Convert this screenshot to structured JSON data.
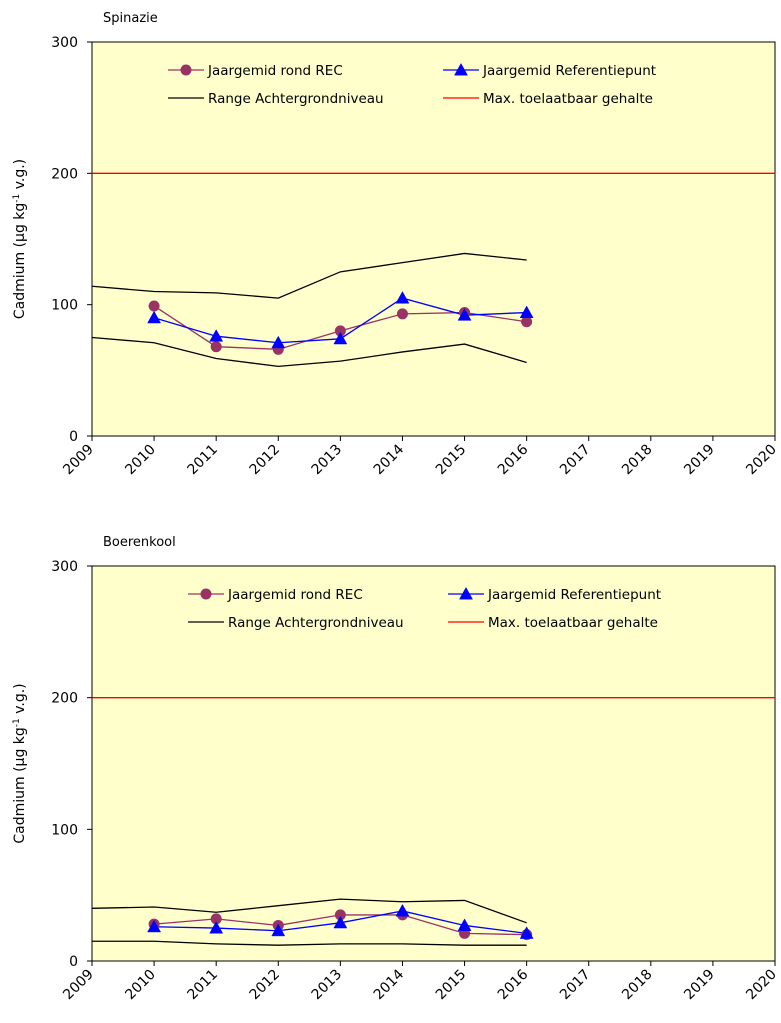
{
  "chart_data": [
    {
      "type": "line",
      "title": "Spinazie",
      "ylabel": "Cadmium  (µg kg",
      "ylabel_sup": "-1",
      "ylabel_tail": " v.g.)",
      "xlim": [
        2009,
        2020
      ],
      "ylim": [
        0,
        300
      ],
      "xticks": [
        2009,
        2010,
        2011,
        2012,
        2013,
        2014,
        2015,
        2016,
        2017,
        2018,
        2019,
        2020
      ],
      "yticks": [
        0,
        100,
        200,
        300
      ],
      "plot_background": "#FFFFCC",
      "legend": "top-center",
      "series": [
        {
          "name": "Jaargemid rond REC",
          "color": "#993366",
          "marker": "circle",
          "x": [
            2010,
            2011,
            2012,
            2013,
            2014,
            2015,
            2016
          ],
          "y": [
            99,
            68,
            66,
            80,
            93,
            94,
            87
          ]
        },
        {
          "name": "Jaargemid Referentiepunt",
          "color": "#0000FF",
          "marker": "triangle",
          "x": [
            2010,
            2011,
            2012,
            2013,
            2014,
            2015,
            2016
          ],
          "y": [
            90,
            76,
            71,
            74,
            105,
            92,
            94
          ]
        },
        {
          "name": "Range Achtergrondniveau",
          "color": "#000000",
          "marker": "none",
          "x": [
            2009,
            2010,
            2011,
            2012,
            2013,
            2014,
            2015,
            2016
          ],
          "y": [
            114,
            110,
            109,
            105,
            125,
            132,
            139,
            134
          ]
        },
        {
          "name": "",
          "color": "#000000",
          "marker": "none",
          "legend": false,
          "x": [
            2009,
            2010,
            2011,
            2012,
            2013,
            2014,
            2015,
            2016
          ],
          "y": [
            75,
            71,
            59,
            53,
            57,
            64,
            70,
            56
          ]
        },
        {
          "name": "Max. toelaatbaar gehalte",
          "color": "#FF0000",
          "marker": "none",
          "x": [
            2009,
            2020
          ],
          "y": [
            200,
            200
          ]
        }
      ]
    },
    {
      "type": "line",
      "title": "Boerenkool",
      "ylabel": "Cadmium  (µg kg",
      "ylabel_sup": "-1",
      "ylabel_tail": " v.g.)",
      "xlim": [
        2009,
        2020
      ],
      "ylim": [
        0,
        300
      ],
      "xticks": [
        2009,
        2010,
        2011,
        2012,
        2013,
        2014,
        2015,
        2016,
        2017,
        2018,
        2019,
        2020
      ],
      "yticks": [
        0,
        100,
        200,
        300
      ],
      "plot_background": "#FFFFCC",
      "legend": "top-center",
      "series": [
        {
          "name": "Jaargemid rond REC",
          "color": "#993366",
          "marker": "circle",
          "x": [
            2010,
            2011,
            2012,
            2013,
            2014,
            2015,
            2016
          ],
          "y": [
            28,
            32,
            27,
            35,
            35,
            21,
            20
          ]
        },
        {
          "name": "Jaargemid Referentiepunt",
          "color": "#0000FF",
          "marker": "triangle",
          "x": [
            2010,
            2011,
            2012,
            2013,
            2014,
            2015,
            2016
          ],
          "y": [
            26,
            25,
            23,
            29,
            38,
            27,
            21
          ]
        },
        {
          "name": "Range Achtergrondniveau",
          "color": "#000000",
          "marker": "none",
          "x": [
            2009,
            2010,
            2011,
            2012,
            2013,
            2014,
            2015,
            2016
          ],
          "y": [
            40,
            41,
            37,
            42,
            47,
            45,
            46,
            29
          ]
        },
        {
          "name": "",
          "color": "#000000",
          "marker": "none",
          "legend": false,
          "x": [
            2009,
            2010,
            2011,
            2012,
            2013,
            2014,
            2015,
            2016
          ],
          "y": [
            15,
            15,
            13,
            12,
            13,
            13,
            12,
            12
          ]
        },
        {
          "name": "Max. toelaatbaar gehalte",
          "color": "#FF0000",
          "marker": "none",
          "x": [
            2009,
            2020
          ],
          "y": [
            200,
            200
          ]
        }
      ]
    }
  ]
}
